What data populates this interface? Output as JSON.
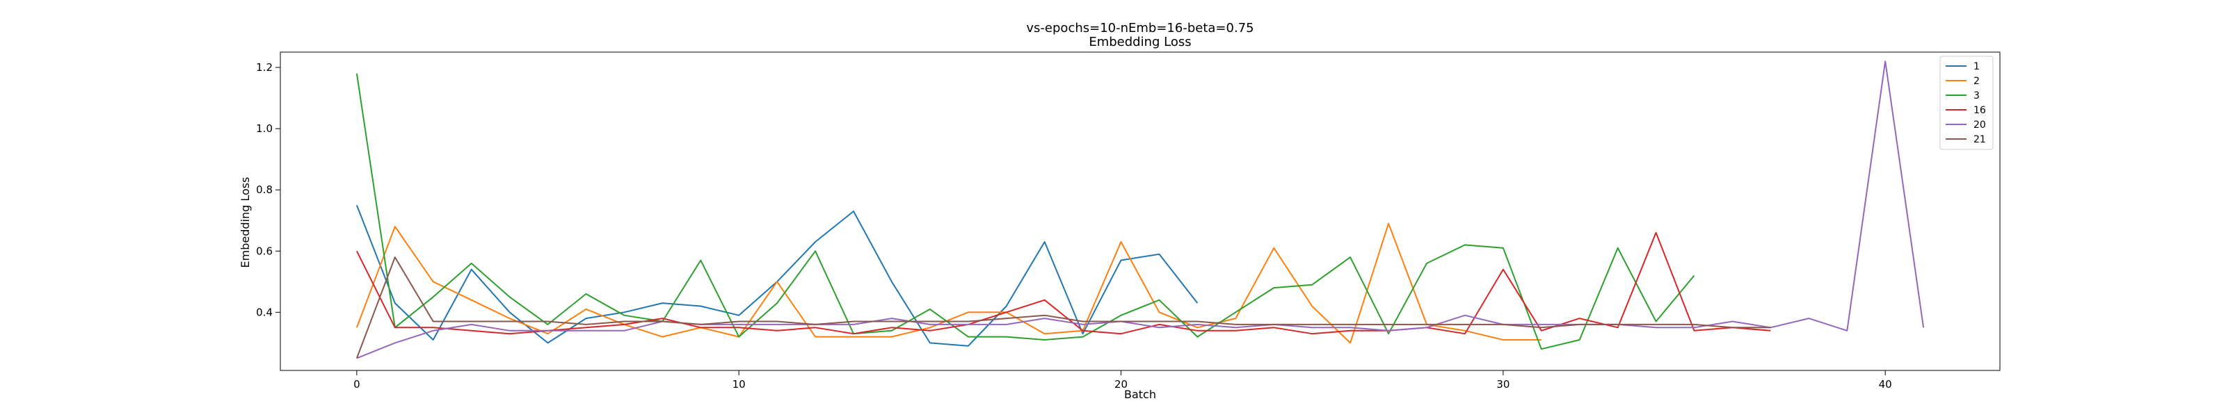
{
  "chart_data": {
    "type": "line",
    "title": "vs-epochs=10-nEmb=16-beta=0.75",
    "subtitle": "Embedding Loss",
    "xlabel": "Batch",
    "ylabel": "Embedding Loss",
    "xlim": [
      -2,
      43
    ],
    "ylim": [
      0.21,
      1.25
    ],
    "xticks": [
      0,
      10,
      20,
      30,
      40
    ],
    "yticks": [
      0.4,
      0.6,
      0.8,
      1.0,
      1.2
    ],
    "xtick_labels": [
      "0",
      "10",
      "20",
      "30",
      "40"
    ],
    "ytick_labels": [
      "0.4",
      "0.6",
      "0.8",
      "1.0",
      "1.2"
    ],
    "grid": false,
    "legend_position": "top-right",
    "series": [
      {
        "name": "1",
        "color": "#1f77b4",
        "x": [
          0,
          1,
          2,
          3,
          4,
          5,
          6,
          7,
          8,
          9,
          10,
          11,
          12,
          13,
          14,
          15,
          16,
          17,
          18,
          19,
          20,
          21,
          22
        ],
        "y": [
          0.75,
          0.43,
          0.31,
          0.54,
          0.4,
          0.3,
          0.38,
          0.4,
          0.43,
          0.42,
          0.39,
          0.5,
          0.63,
          0.73,
          0.5,
          0.3,
          0.29,
          0.42,
          0.63,
          0.33,
          0.57,
          0.59,
          0.43
        ]
      },
      {
        "name": "2",
        "color": "#ff7f0e",
        "x": [
          0,
          1,
          2,
          3,
          4,
          5,
          6,
          7,
          8,
          9,
          10,
          11,
          12,
          13,
          14,
          15,
          16,
          17,
          18,
          19,
          20,
          21,
          22,
          23,
          24,
          25,
          26,
          27,
          28,
          29,
          30,
          31
        ],
        "y": [
          0.35,
          0.68,
          0.5,
          0.44,
          0.38,
          0.33,
          0.41,
          0.36,
          0.32,
          0.35,
          0.32,
          0.5,
          0.32,
          0.32,
          0.32,
          0.35,
          0.4,
          0.4,
          0.33,
          0.34,
          0.63,
          0.4,
          0.35,
          0.38,
          0.61,
          0.42,
          0.3,
          0.69,
          0.36,
          0.34,
          0.31,
          0.31
        ]
      },
      {
        "name": "3",
        "color": "#2ca02c",
        "x": [
          0,
          1,
          2,
          3,
          4,
          5,
          6,
          7,
          8,
          9,
          10,
          11,
          12,
          13,
          14,
          15,
          16,
          17,
          18,
          19,
          20,
          21,
          22,
          23,
          24,
          25,
          26,
          27,
          28,
          29,
          30,
          31,
          32,
          33,
          34,
          35
        ],
        "y": [
          1.18,
          0.35,
          0.45,
          0.56,
          0.45,
          0.36,
          0.46,
          0.39,
          0.37,
          0.57,
          0.32,
          0.43,
          0.6,
          0.33,
          0.34,
          0.41,
          0.32,
          0.32,
          0.31,
          0.32,
          0.39,
          0.44,
          0.32,
          0.4,
          0.48,
          0.49,
          0.58,
          0.33,
          0.56,
          0.62,
          0.61,
          0.28,
          0.31,
          0.61,
          0.37,
          0.52
        ]
      },
      {
        "name": "16",
        "color": "#d62728",
        "x": [
          0,
          1,
          2,
          3,
          4,
          5,
          6,
          7,
          8,
          9,
          10,
          11,
          12,
          13,
          14,
          15,
          16,
          17,
          18,
          19,
          20,
          21,
          22,
          23,
          24,
          25,
          26,
          27,
          28,
          29,
          30,
          31,
          32,
          33,
          34,
          35,
          36,
          37
        ],
        "y": [
          0.6,
          0.35,
          0.35,
          0.34,
          0.33,
          0.34,
          0.35,
          0.36,
          0.38,
          0.35,
          0.35,
          0.34,
          0.35,
          0.33,
          0.35,
          0.34,
          0.36,
          0.4,
          0.44,
          0.34,
          0.33,
          0.36,
          0.34,
          0.34,
          0.35,
          0.33,
          0.34,
          0.34,
          0.35,
          0.33,
          0.54,
          0.34,
          0.38,
          0.35,
          0.66,
          0.34,
          0.35,
          0.34
        ]
      },
      {
        "name": "20",
        "color": "#9467bd",
        "x": [
          0,
          1,
          2,
          3,
          4,
          5,
          6,
          7,
          8,
          9,
          10,
          11,
          12,
          13,
          14,
          15,
          16,
          17,
          18,
          19,
          20,
          21,
          22,
          23,
          24,
          25,
          26,
          27,
          28,
          29,
          30,
          31,
          32,
          33,
          34,
          35,
          36,
          37,
          38,
          39,
          40,
          41
        ],
        "y": [
          0.25,
          0.3,
          0.34,
          0.36,
          0.34,
          0.34,
          0.34,
          0.34,
          0.37,
          0.36,
          0.36,
          0.36,
          0.36,
          0.36,
          0.38,
          0.36,
          0.36,
          0.36,
          0.38,
          0.36,
          0.37,
          0.35,
          0.36,
          0.35,
          0.36,
          0.35,
          0.35,
          0.34,
          0.35,
          0.39,
          0.36,
          0.36,
          0.36,
          0.36,
          0.35,
          0.35,
          0.37,
          0.35,
          0.38,
          0.34,
          1.22,
          0.35
        ]
      },
      {
        "name": "21",
        "color": "#8c564b",
        "x": [
          0,
          1,
          2,
          3,
          4,
          5,
          6,
          7,
          8,
          9,
          10,
          11,
          12,
          13,
          14,
          15,
          16,
          17,
          18,
          19,
          20,
          21,
          22,
          23,
          24,
          25,
          26,
          27,
          28,
          29,
          30,
          31,
          32,
          33,
          34,
          35,
          36,
          37
        ],
        "y": [
          0.25,
          0.58,
          0.37,
          0.37,
          0.37,
          0.37,
          0.36,
          0.37,
          0.37,
          0.36,
          0.37,
          0.37,
          0.36,
          0.37,
          0.37,
          0.37,
          0.37,
          0.38,
          0.39,
          0.37,
          0.37,
          0.37,
          0.37,
          0.36,
          0.36,
          0.36,
          0.36,
          0.36,
          0.36,
          0.36,
          0.36,
          0.35,
          0.36,
          0.36,
          0.36,
          0.36,
          0.35,
          0.35
        ]
      }
    ]
  }
}
